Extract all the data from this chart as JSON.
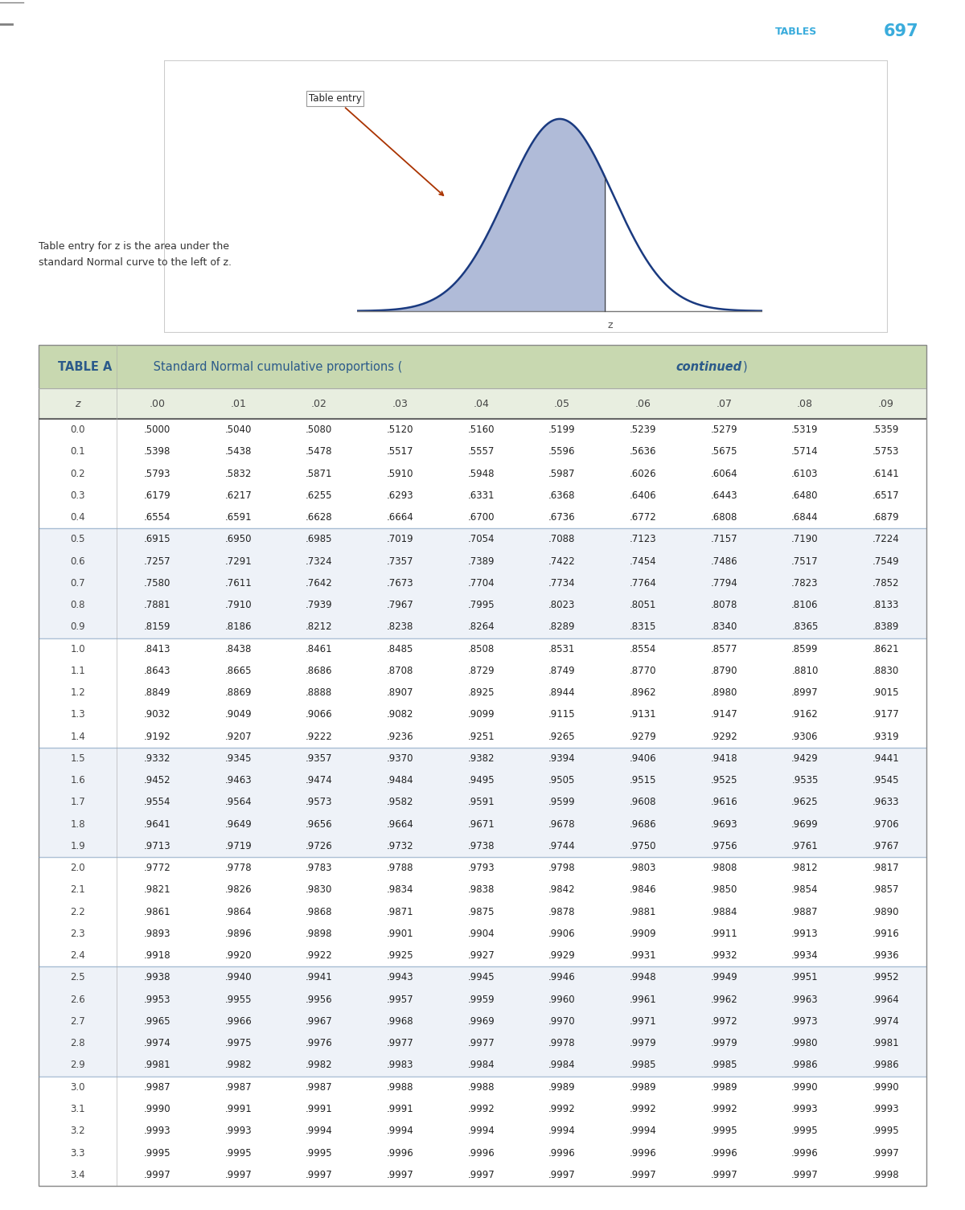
{
  "title_bold": "TABLE A",
  "title_normal": " Standard Normal cumulative proportions (",
  "title_italic": "continued",
  "title_close": ")",
  "header_bg": "#c8d8b0",
  "header_text_color": "#2b5a8a",
  "subheader_bg": "#e8eee0",
  "row_colors": [
    "#ffffff",
    "#eef2f8"
  ],
  "col_headers": [
    "z",
    ".00",
    ".01",
    ".02",
    ".03",
    ".04",
    ".05",
    ".06",
    ".07",
    ".08",
    ".09"
  ],
  "groups": [
    {
      "z_values": [
        "0.0",
        "0.1",
        "0.2",
        "0.3",
        "0.4"
      ],
      "data": [
        [
          ".5000",
          ".5040",
          ".5080",
          ".5120",
          ".5160",
          ".5199",
          ".5239",
          ".5279",
          ".5319",
          ".5359"
        ],
        [
          ".5398",
          ".5438",
          ".5478",
          ".5517",
          ".5557",
          ".5596",
          ".5636",
          ".5675",
          ".5714",
          ".5753"
        ],
        [
          ".5793",
          ".5832",
          ".5871",
          ".5910",
          ".5948",
          ".5987",
          ".6026",
          ".6064",
          ".6103",
          ".6141"
        ],
        [
          ".6179",
          ".6217",
          ".6255",
          ".6293",
          ".6331",
          ".6368",
          ".6406",
          ".6443",
          ".6480",
          ".6517"
        ],
        [
          ".6554",
          ".6591",
          ".6628",
          ".6664",
          ".6700",
          ".6736",
          ".6772",
          ".6808",
          ".6844",
          ".6879"
        ]
      ]
    },
    {
      "z_values": [
        "0.5",
        "0.6",
        "0.7",
        "0.8",
        "0.9"
      ],
      "data": [
        [
          ".6915",
          ".6950",
          ".6985",
          ".7019",
          ".7054",
          ".7088",
          ".7123",
          ".7157",
          ".7190",
          ".7224"
        ],
        [
          ".7257",
          ".7291",
          ".7324",
          ".7357",
          ".7389",
          ".7422",
          ".7454",
          ".7486",
          ".7517",
          ".7549"
        ],
        [
          ".7580",
          ".7611",
          ".7642",
          ".7673",
          ".7704",
          ".7734",
          ".7764",
          ".7794",
          ".7823",
          ".7852"
        ],
        [
          ".7881",
          ".7910",
          ".7939",
          ".7967",
          ".7995",
          ".8023",
          ".8051",
          ".8078",
          ".8106",
          ".8133"
        ],
        [
          ".8159",
          ".8186",
          ".8212",
          ".8238",
          ".8264",
          ".8289",
          ".8315",
          ".8340",
          ".8365",
          ".8389"
        ]
      ]
    },
    {
      "z_values": [
        "1.0",
        "1.1",
        "1.2",
        "1.3",
        "1.4"
      ],
      "data": [
        [
          ".8413",
          ".8438",
          ".8461",
          ".8485",
          ".8508",
          ".8531",
          ".8554",
          ".8577",
          ".8599",
          ".8621"
        ],
        [
          ".8643",
          ".8665",
          ".8686",
          ".8708",
          ".8729",
          ".8749",
          ".8770",
          ".8790",
          ".8810",
          ".8830"
        ],
        [
          ".8849",
          ".8869",
          ".8888",
          ".8907",
          ".8925",
          ".8944",
          ".8962",
          ".8980",
          ".8997",
          ".9015"
        ],
        [
          ".9032",
          ".9049",
          ".9066",
          ".9082",
          ".9099",
          ".9115",
          ".9131",
          ".9147",
          ".9162",
          ".9177"
        ],
        [
          ".9192",
          ".9207",
          ".9222",
          ".9236",
          ".9251",
          ".9265",
          ".9279",
          ".9292",
          ".9306",
          ".9319"
        ]
      ]
    },
    {
      "z_values": [
        "1.5",
        "1.6",
        "1.7",
        "1.8",
        "1.9"
      ],
      "data": [
        [
          ".9332",
          ".9345",
          ".9357",
          ".9370",
          ".9382",
          ".9394",
          ".9406",
          ".9418",
          ".9429",
          ".9441"
        ],
        [
          ".9452",
          ".9463",
          ".9474",
          ".9484",
          ".9495",
          ".9505",
          ".9515",
          ".9525",
          ".9535",
          ".9545"
        ],
        [
          ".9554",
          ".9564",
          ".9573",
          ".9582",
          ".9591",
          ".9599",
          ".9608",
          ".9616",
          ".9625",
          ".9633"
        ],
        [
          ".9641",
          ".9649",
          ".9656",
          ".9664",
          ".9671",
          ".9678",
          ".9686",
          ".9693",
          ".9699",
          ".9706"
        ],
        [
          ".9713",
          ".9719",
          ".9726",
          ".9732",
          ".9738",
          ".9744",
          ".9750",
          ".9756",
          ".9761",
          ".9767"
        ]
      ]
    },
    {
      "z_values": [
        "2.0",
        "2.1",
        "2.2",
        "2.3",
        "2.4"
      ],
      "data": [
        [
          ".9772",
          ".9778",
          ".9783",
          ".9788",
          ".9793",
          ".9798",
          ".9803",
          ".9808",
          ".9812",
          ".9817"
        ],
        [
          ".9821",
          ".9826",
          ".9830",
          ".9834",
          ".9838",
          ".9842",
          ".9846",
          ".9850",
          ".9854",
          ".9857"
        ],
        [
          ".9861",
          ".9864",
          ".9868",
          ".9871",
          ".9875",
          ".9878",
          ".9881",
          ".9884",
          ".9887",
          ".9890"
        ],
        [
          ".9893",
          ".9896",
          ".9898",
          ".9901",
          ".9904",
          ".9906",
          ".9909",
          ".9911",
          ".9913",
          ".9916"
        ],
        [
          ".9918",
          ".9920",
          ".9922",
          ".9925",
          ".9927",
          ".9929",
          ".9931",
          ".9932",
          ".9934",
          ".9936"
        ]
      ]
    },
    {
      "z_values": [
        "2.5",
        "2.6",
        "2.7",
        "2.8",
        "2.9"
      ],
      "data": [
        [
          ".9938",
          ".9940",
          ".9941",
          ".9943",
          ".9945",
          ".9946",
          ".9948",
          ".9949",
          ".9951",
          ".9952"
        ],
        [
          ".9953",
          ".9955",
          ".9956",
          ".9957",
          ".9959",
          ".9960",
          ".9961",
          ".9962",
          ".9963",
          ".9964"
        ],
        [
          ".9965",
          ".9966",
          ".9967",
          ".9968",
          ".9969",
          ".9970",
          ".9971",
          ".9972",
          ".9973",
          ".9974"
        ],
        [
          ".9974",
          ".9975",
          ".9976",
          ".9977",
          ".9977",
          ".9978",
          ".9979",
          ".9979",
          ".9980",
          ".9981"
        ],
        [
          ".9981",
          ".9982",
          ".9982",
          ".9983",
          ".9984",
          ".9984",
          ".9985",
          ".9985",
          ".9986",
          ".9986"
        ]
      ]
    },
    {
      "z_values": [
        "3.0",
        "3.1",
        "3.2",
        "3.3",
        "3.4"
      ],
      "data": [
        [
          ".9987",
          ".9987",
          ".9987",
          ".9988",
          ".9988",
          ".9989",
          ".9989",
          ".9989",
          ".9990",
          ".9990"
        ],
        [
          ".9990",
          ".9991",
          ".9991",
          ".9991",
          ".9992",
          ".9992",
          ".9992",
          ".9992",
          ".9993",
          ".9993"
        ],
        [
          ".9993",
          ".9993",
          ".9994",
          ".9994",
          ".9994",
          ".9994",
          ".9994",
          ".9995",
          ".9995",
          ".9995"
        ],
        [
          ".9995",
          ".9995",
          ".9995",
          ".9996",
          ".9996",
          ".9996",
          ".9996",
          ".9996",
          ".9996",
          ".9997"
        ],
        [
          ".9997",
          ".9997",
          ".9997",
          ".9997",
          ".9997",
          ".9997",
          ".9997",
          ".9997",
          ".9997",
          ".9998"
        ]
      ]
    }
  ],
  "page_number": "697",
  "tables_label": "TABLES",
  "blue_bar_color": "#3aacdc",
  "description_text": "Table entry for z is the area under the\nstandard Normal curve to the left of z.",
  "table_entry_label": "Table entry"
}
